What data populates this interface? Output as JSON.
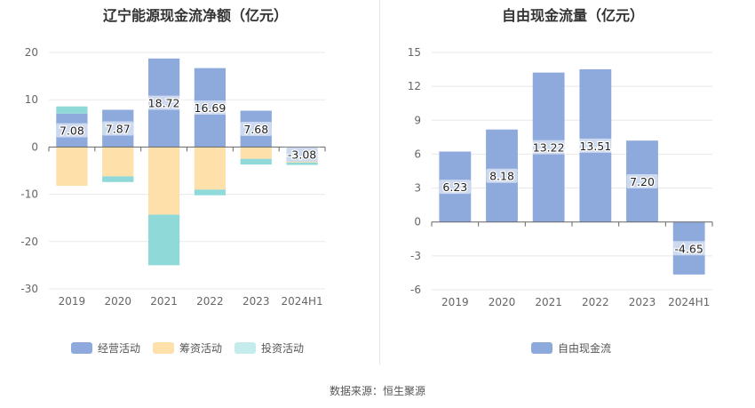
{
  "left_chart": {
    "title": "辽宁能源现金流净额（亿元）",
    "legend": [
      {
        "label": "经营活动",
        "color": "#8eaadc"
      },
      {
        "label": "筹资活动",
        "color": "#fde0aa"
      },
      {
        "label": "投资活动",
        "color": "#8fd9d9"
      }
    ]
  },
  "right_chart": {
    "title": "自由现金流量（亿元）",
    "legend": [
      {
        "label": "自由现金流",
        "color": "#8eaadc"
      }
    ]
  },
  "source": "数据来源：恒生聚源",
  "chart_data": [
    {
      "type": "bar",
      "stacked": true,
      "title": "辽宁能源现金流净额（亿元）",
      "categories": [
        "2019",
        "2020",
        "2021",
        "2022",
        "2023",
        "2024H1"
      ],
      "ylim": [
        -30,
        20
      ],
      "yticks": [
        -30,
        -20,
        -10,
        0,
        10,
        20
      ],
      "series": [
        {
          "name": "经营活动",
          "color": "#8eaadc",
          "values": [
            7.08,
            7.87,
            18.72,
            16.69,
            7.68,
            -3.08
          ],
          "labels": [
            "7.08",
            "7.87",
            "18.72",
            "16.69",
            "7.68",
            "-3.08"
          ]
        },
        {
          "name": "筹资活动",
          "color": "#fde0aa",
          "values": [
            -8.2,
            -6.2,
            -14.3,
            -9.0,
            -2.5,
            -0.2
          ]
        },
        {
          "name": "投资活动",
          "color": "#8fd9d9",
          "values": [
            1.5,
            -1.2,
            -10.7,
            -1.2,
            -1.2,
            -0.5
          ]
        }
      ]
    },
    {
      "type": "bar",
      "title": "自由现金流量（亿元）",
      "categories": [
        "2019",
        "2020",
        "2021",
        "2022",
        "2023",
        "2024H1"
      ],
      "ylim": [
        -6,
        15
      ],
      "yticks": [
        -6,
        -3,
        0,
        3,
        6,
        9,
        12,
        15
      ],
      "series": [
        {
          "name": "自由现金流",
          "color": "#8eaadc",
          "values": [
            6.23,
            8.18,
            13.22,
            13.51,
            7.2,
            -4.65
          ],
          "labels": [
            "6.23",
            "8.18",
            "13.22",
            "13.51",
            "7.20",
            "-4.65"
          ]
        }
      ]
    }
  ]
}
